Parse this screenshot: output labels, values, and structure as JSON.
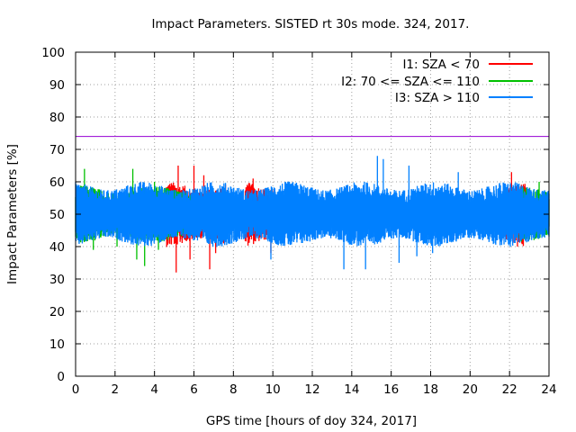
{
  "chart_data": {
    "type": "line",
    "title": "Impact Parameters. SISTED rt 30s mode. 324, 2017.",
    "xlabel": "GPS time [hours of doy 324, 2017]",
    "ylabel": "Impact Parameters [%]",
    "xlim": [
      0,
      24
    ],
    "ylim": [
      0,
      100
    ],
    "xticks": [
      0,
      2,
      4,
      6,
      8,
      10,
      12,
      14,
      16,
      18,
      20,
      22,
      24
    ],
    "yticks": [
      0,
      10,
      20,
      30,
      40,
      50,
      60,
      70,
      80,
      90,
      100
    ],
    "grid": true,
    "legend_position": "top-right",
    "threshold": {
      "value": 74,
      "color": "#9400d3"
    },
    "series": [
      {
        "name": "I1: SZA < 70",
        "color": "#ff0000",
        "mean": 50,
        "typical_min": 42,
        "typical_max": 58,
        "peaks": [
          {
            "x": 5.1,
            "y": 32
          },
          {
            "x": 5.2,
            "y": 65
          },
          {
            "x": 5.8,
            "y": 36
          },
          {
            "x": 6.0,
            "y": 65
          },
          {
            "x": 6.5,
            "y": 62
          },
          {
            "x": 6.8,
            "y": 33
          },
          {
            "x": 7.1,
            "y": 38
          },
          {
            "x": 9.0,
            "y": 61
          },
          {
            "x": 9.9,
            "y": 38
          },
          {
            "x": 22.1,
            "y": 63
          },
          {
            "x": 22.4,
            "y": 40
          }
        ]
      },
      {
        "name": "I2: 70 <= SZA <= 110",
        "color": "#00c000",
        "mean": 50,
        "typical_min": 43,
        "typical_max": 57,
        "peaks": [
          {
            "x": 0.45,
            "y": 64
          },
          {
            "x": 0.9,
            "y": 39
          },
          {
            "x": 2.1,
            "y": 40
          },
          {
            "x": 2.9,
            "y": 64
          },
          {
            "x": 3.1,
            "y": 36
          },
          {
            "x": 3.5,
            "y": 34
          },
          {
            "x": 4.0,
            "y": 60
          },
          {
            "x": 4.2,
            "y": 39
          },
          {
            "x": 23.5,
            "y": 60
          }
        ]
      },
      {
        "name": "I3: SZA > 110",
        "color": "#0080ff",
        "mean": 50,
        "typical_min": 42,
        "typical_max": 58,
        "peaks": [
          {
            "x": 9.9,
            "y": 36
          },
          {
            "x": 13.6,
            "y": 33
          },
          {
            "x": 14.7,
            "y": 33
          },
          {
            "x": 15.3,
            "y": 68
          },
          {
            "x": 15.6,
            "y": 67
          },
          {
            "x": 16.4,
            "y": 35
          },
          {
            "x": 16.9,
            "y": 65
          },
          {
            "x": 17.3,
            "y": 37
          },
          {
            "x": 18.1,
            "y": 38
          },
          {
            "x": 19.4,
            "y": 63
          }
        ]
      }
    ]
  }
}
